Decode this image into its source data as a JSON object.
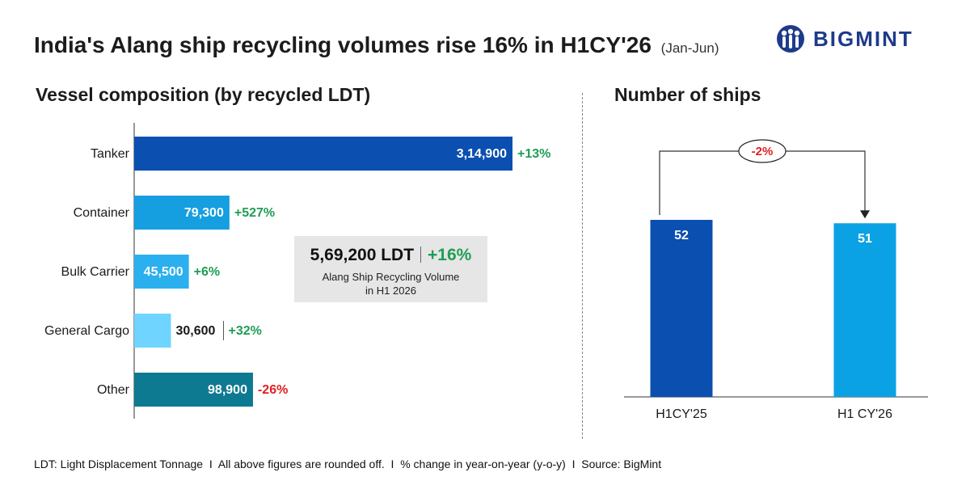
{
  "header": {
    "title": "India's Alang ship recycling volumes rise 16% in H1CY'26",
    "period": "(Jan-Jun)",
    "logo_text": "BIGMINT",
    "logo_icon": "bigmint-people-icon"
  },
  "sections": {
    "left_title": "Vessel composition (by recycled LDT)",
    "right_title": "Number of ships"
  },
  "callout": {
    "value": "5,69,200 LDT",
    "change": "+16%",
    "line1": "Alang Ship Recycling Volume",
    "line2": "in H1 2026"
  },
  "footer": "LDT: Light Displacement Tonnage  I  All above figures are rounded off.  I  % change in year-on-year (y-o-y)  I  Source: BigMint",
  "colors": {
    "positive": "#1f9d55",
    "negative": "#e02020"
  },
  "chart_data": [
    {
      "type": "bar",
      "orientation": "horizontal",
      "title": "Vessel composition (by recycled LDT)",
      "categories": [
        "Tanker",
        "Container",
        "Bulk Carrier",
        "General Cargo",
        "Other"
      ],
      "values": [
        314900,
        79300,
        45500,
        30600,
        98900
      ],
      "value_labels": [
        "3,14,900",
        "79,300",
        "45,500",
        "30,600",
        "98,900"
      ],
      "changes": [
        "+13%",
        "+527%",
        "+6%",
        "+32%",
        "-26%"
      ],
      "colors": [
        "#0b4fb0",
        "#159ee0",
        "#2ab0ef",
        "#6fd4ff",
        "#0e7a92"
      ],
      "xlim": [
        0,
        314900
      ]
    },
    {
      "type": "bar",
      "orientation": "vertical",
      "title": "Number of ships",
      "categories": [
        "H1CY'25",
        "H1 CY'26"
      ],
      "values": [
        52,
        51
      ],
      "colors": [
        "#0b4fb0",
        "#0aa2e4"
      ],
      "change_label": "-2%",
      "ylim": [
        0,
        52
      ]
    }
  ]
}
